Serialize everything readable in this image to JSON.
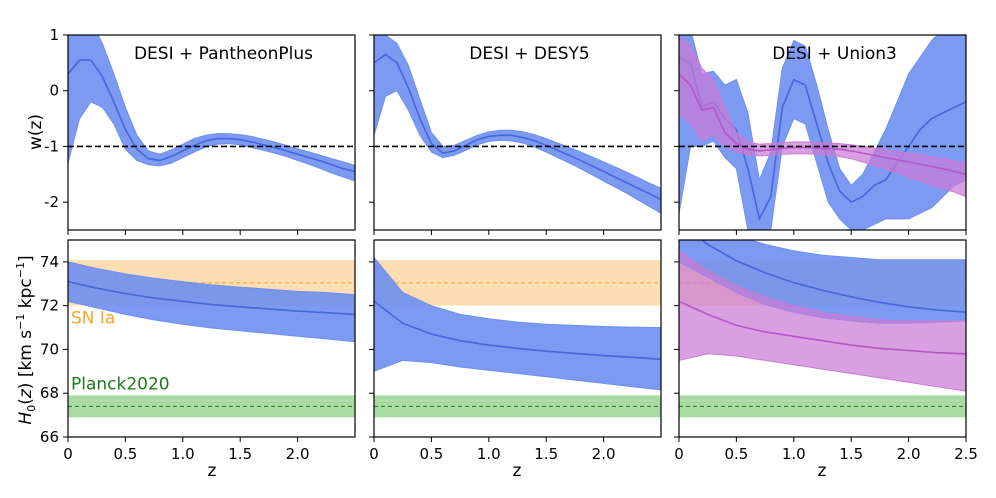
{
  "chart_data": {
    "type": "line",
    "shared_xlabel": "z",
    "xlim": [
      0,
      2.5
    ],
    "x_ticks": [
      0,
      0.5,
      1.0,
      1.5,
      2.0
    ],
    "x_ticks_last_panel": [
      0,
      0.5,
      1.0,
      1.5,
      2.0,
      2.5
    ],
    "x_tick_labels": [
      "0",
      "0.5",
      "1.0",
      "1.5",
      "2.0"
    ],
    "x_tick_labels_last_panel": [
      "0",
      "0.5",
      "1.0",
      "1.5",
      "2.0",
      "2.5"
    ],
    "colors": {
      "blue_fill": "#6e8ff0",
      "blue_line": "#4666dc",
      "purple_fill": "#c97ad6",
      "purple_line": "#b456c8",
      "orange_band": "#fcdcae",
      "orange_line": "#f5a524",
      "green_band": "#a7d9a0",
      "green_line": "#1c7a1c",
      "reference": "#000000"
    },
    "top_row": {
      "ylabel": "w(z)",
      "ylim": [
        -2.5,
        1
      ],
      "y_ticks": [
        1,
        0,
        -1,
        -2
      ],
      "y_tick_labels": [
        "1",
        "0",
        "-1",
        "-2"
      ],
      "reference_line": -1,
      "panels": [
        {
          "title": "DESI + PantheonPlus",
          "series": [
            {
              "color": "blue",
              "x": [
                0,
                0.1,
                0.2,
                0.3,
                0.4,
                0.5,
                0.6,
                0.7,
                0.8,
                0.9,
                1.0,
                1.1,
                1.2,
                1.3,
                1.4,
                1.5,
                1.6,
                1.7,
                1.8,
                1.9,
                2.0,
                2.1,
                2.2,
                2.3,
                2.4,
                2.5
              ],
              "mean": [
                0.3,
                0.55,
                0.55,
                0.25,
                -0.2,
                -0.7,
                -1.05,
                -1.22,
                -1.25,
                -1.18,
                -1.08,
                -0.98,
                -0.9,
                -0.86,
                -0.86,
                -0.88,
                -0.92,
                -0.97,
                -1.02,
                -1.08,
                -1.14,
                -1.2,
                -1.26,
                -1.33,
                -1.4,
                -1.45
              ],
              "upper": [
                1.2,
                1.3,
                1.25,
                0.85,
                0.3,
                -0.3,
                -0.8,
                -1.08,
                -1.14,
                -1.06,
                -0.96,
                -0.86,
                -0.8,
                -0.77,
                -0.77,
                -0.79,
                -0.82,
                -0.87,
                -0.92,
                -0.98,
                -1.04,
                -1.1,
                -1.16,
                -1.22,
                -1.28,
                -1.34
              ],
              "lower": [
                -1.3,
                -0.5,
                -0.2,
                -0.3,
                -0.6,
                -1.05,
                -1.25,
                -1.33,
                -1.35,
                -1.3,
                -1.2,
                -1.1,
                -1.01,
                -0.96,
                -0.95,
                -0.97,
                -1.02,
                -1.07,
                -1.12,
                -1.18,
                -1.25,
                -1.32,
                -1.4,
                -1.48,
                -1.55,
                -1.62
              ]
            }
          ]
        },
        {
          "title": "DESI + DESY5",
          "series": [
            {
              "color": "blue",
              "x": [
                0,
                0.1,
                0.2,
                0.3,
                0.4,
                0.5,
                0.6,
                0.7,
                0.8,
                0.9,
                1.0,
                1.1,
                1.2,
                1.3,
                1.4,
                1.5,
                1.6,
                1.7,
                1.8,
                1.9,
                2.0,
                2.1,
                2.2,
                2.3,
                2.4,
                2.5
              ],
              "mean": [
                0.5,
                0.65,
                0.5,
                0.05,
                -0.5,
                -0.95,
                -1.12,
                -1.08,
                -0.98,
                -0.88,
                -0.82,
                -0.8,
                -0.8,
                -0.84,
                -0.9,
                -0.98,
                -1.07,
                -1.16,
                -1.25,
                -1.35,
                -1.45,
                -1.55,
                -1.65,
                -1.75,
                -1.85,
                -1.95
              ],
              "upper": [
                1.0,
                1.0,
                0.85,
                0.45,
                -0.15,
                -0.75,
                -1.0,
                -0.98,
                -0.89,
                -0.8,
                -0.74,
                -0.71,
                -0.71,
                -0.74,
                -0.79,
                -0.86,
                -0.94,
                -1.02,
                -1.1,
                -1.19,
                -1.28,
                -1.37,
                -1.46,
                -1.56,
                -1.66,
                -1.75
              ],
              "lower": [
                -0.8,
                -0.1,
                0.0,
                -0.35,
                -0.8,
                -1.1,
                -1.2,
                -1.16,
                -1.07,
                -0.97,
                -0.91,
                -0.89,
                -0.9,
                -0.94,
                -1.01,
                -1.1,
                -1.2,
                -1.3,
                -1.4,
                -1.51,
                -1.62,
                -1.73,
                -1.84,
                -1.96,
                -2.08,
                -2.2
              ]
            }
          ]
        },
        {
          "title": "DESI + Union3",
          "series": [
            {
              "color": "blue",
              "x": [
                0,
                0.1,
                0.2,
                0.3,
                0.4,
                0.5,
                0.6,
                0.7,
                0.8,
                0.9,
                1.0,
                1.1,
                1.2,
                1.3,
                1.4,
                1.5,
                1.6,
                1.7,
                1.8,
                1.9,
                2.0,
                2.1,
                2.2,
                2.3,
                2.4,
                2.5
              ],
              "mean": [
                0.6,
                0.5,
                -0.3,
                -0.2,
                -0.5,
                -0.7,
                -1.4,
                -2.3,
                -1.9,
                -0.3,
                0.2,
                0.1,
                -0.6,
                -1.3,
                -1.8,
                -2.0,
                -1.9,
                -1.7,
                -1.6,
                -1.3,
                -1.0,
                -0.7,
                -0.5,
                -0.4,
                -0.3,
                -0.2
              ],
              "upper": [
                1.2,
                1.1,
                0.3,
                0.35,
                0.1,
                0.2,
                -0.4,
                -1.6,
                -1.1,
                0.4,
                0.9,
                0.8,
                0.1,
                -0.7,
                -1.4,
                -1.7,
                -1.5,
                -1.1,
                -0.7,
                -0.2,
                0.3,
                0.6,
                0.9,
                1.1,
                1.1,
                1.0
              ],
              "lower": [
                -2.2,
                -1.0,
                -1.0,
                -0.9,
                -1.2,
                -1.4,
                -2.5,
                -2.5,
                -2.5,
                -1.0,
                -0.5,
                -0.6,
                -1.3,
                -2.0,
                -2.3,
                -2.5,
                -2.5,
                -2.4,
                -2.3,
                -2.3,
                -2.3,
                -2.2,
                -2.1,
                -1.9,
                -1.7,
                -1.6
              ]
            },
            {
              "color": "purple",
              "x": [
                0,
                0.1,
                0.2,
                0.3,
                0.4,
                0.5,
                0.6,
                0.7,
                0.8,
                0.9,
                1.0,
                1.1,
                1.2,
                1.3,
                1.4,
                1.5,
                1.6,
                1.7,
                1.8,
                1.9,
                2.0,
                2.1,
                2.2,
                2.3,
                2.4,
                2.5
              ],
              "mean": [
                0.3,
                0.1,
                -0.35,
                -0.3,
                -0.75,
                -0.95,
                -1.05,
                -1.08,
                -1.06,
                -1.03,
                -1.02,
                -1.02,
                -1.03,
                -1.04,
                -1.05,
                -1.08,
                -1.12,
                -1.16,
                -1.2,
                -1.24,
                -1.28,
                -1.32,
                -1.36,
                -1.4,
                -1.45,
                -1.5
              ],
              "upper": [
                1.0,
                0.8,
                0.4,
                0.2,
                -0.3,
                -0.75,
                -0.92,
                -0.96,
                -0.95,
                -0.93,
                -0.92,
                -0.92,
                -0.93,
                -0.94,
                -0.95,
                -0.97,
                -1.0,
                -1.03,
                -1.06,
                -1.09,
                -1.12,
                -1.15,
                -1.18,
                -1.22,
                -1.26,
                -1.3
              ],
              "lower": [
                -0.4,
                -0.6,
                -0.9,
                -0.8,
                -1.0,
                -1.1,
                -1.15,
                -1.17,
                -1.16,
                -1.14,
                -1.13,
                -1.13,
                -1.14,
                -1.16,
                -1.18,
                -1.22,
                -1.28,
                -1.34,
                -1.41,
                -1.48,
                -1.55,
                -1.62,
                -1.69,
                -1.76,
                -1.82,
                -1.9
              ]
            }
          ]
        }
      ]
    },
    "bottom_row": {
      "ylabel": "H_0(z) [km s^-1 kpc^-1]",
      "ylim": [
        66,
        75
      ],
      "y_ticks": [
        66,
        68,
        70,
        72,
        74
      ],
      "y_tick_labels": [
        "66",
        "68",
        "70",
        "72",
        "74"
      ],
      "references": [
        {
          "label": "SN Ia",
          "value": 73.04,
          "band": [
            72.0,
            74.08
          ],
          "color": "orange"
        },
        {
          "label": "Planck2020",
          "value": 67.4,
          "band": [
            66.9,
            67.9
          ],
          "color": "green"
        }
      ],
      "panels": [
        {
          "series": [
            {
              "color": "blue",
              "x": [
                0,
                0.25,
                0.5,
                0.75,
                1.0,
                1.25,
                1.5,
                1.75,
                2.0,
                2.25,
                2.5
              ],
              "mean": [
                73.1,
                72.8,
                72.55,
                72.35,
                72.2,
                72.05,
                71.95,
                71.85,
                71.75,
                71.68,
                71.6
              ],
              "upper": [
                74.0,
                73.7,
                73.45,
                73.25,
                73.1,
                72.95,
                72.85,
                72.75,
                72.65,
                72.6,
                72.5
              ],
              "lower": [
                72.2,
                71.9,
                71.6,
                71.35,
                71.15,
                70.98,
                70.85,
                70.73,
                70.6,
                70.48,
                70.35
              ]
            }
          ]
        },
        {
          "series": [
            {
              "color": "blue",
              "x": [
                0,
                0.25,
                0.5,
                0.75,
                1.0,
                1.25,
                1.5,
                1.75,
                2.0,
                2.25,
                2.5
              ],
              "mean": [
                72.2,
                71.2,
                70.7,
                70.4,
                70.2,
                70.05,
                69.92,
                69.82,
                69.72,
                69.64,
                69.55
              ],
              "upper": [
                74.2,
                72.6,
                72.0,
                71.6,
                71.4,
                71.25,
                71.15,
                71.1,
                71.05,
                71.02,
                71.0
              ],
              "lower": [
                69.0,
                69.5,
                69.4,
                69.2,
                69.05,
                68.9,
                68.75,
                68.6,
                68.45,
                68.3,
                68.15
              ]
            }
          ]
        },
        {
          "series": [
            {
              "color": "blue",
              "x": [
                0,
                0.25,
                0.5,
                0.75,
                1.0,
                1.25,
                1.5,
                1.75,
                2.0,
                2.25,
                2.5
              ],
              "mean": [
                75.8,
                74.8,
                74.05,
                73.5,
                73.05,
                72.7,
                72.4,
                72.15,
                71.95,
                71.8,
                71.7
              ],
              "upper": [
                77,
                76,
                75.2,
                74.8,
                74.5,
                74.3,
                74.2,
                74.1,
                74.1,
                74.1,
                74.1
              ],
              "lower": [
                74.0,
                73.3,
                72.6,
                72.05,
                71.7,
                71.45,
                71.3,
                71.2,
                71.2,
                71.25,
                71.3
              ]
            },
            {
              "color": "purple",
              "x": [
                0,
                0.25,
                0.5,
                0.75,
                1.0,
                1.25,
                1.5,
                1.75,
                2.0,
                2.25,
                2.5
              ],
              "mean": [
                72.2,
                71.6,
                71.1,
                70.8,
                70.6,
                70.4,
                70.2,
                70.05,
                69.95,
                69.85,
                69.8
              ],
              "upper": [
                74.5,
                73.6,
                72.9,
                72.4,
                72.0,
                71.7,
                71.5,
                71.35,
                71.3,
                71.3,
                71.3
              ],
              "lower": [
                69.5,
                69.8,
                69.7,
                69.5,
                69.3,
                69.1,
                68.9,
                68.7,
                68.5,
                68.3,
                68.1
              ]
            }
          ]
        }
      ]
    }
  }
}
